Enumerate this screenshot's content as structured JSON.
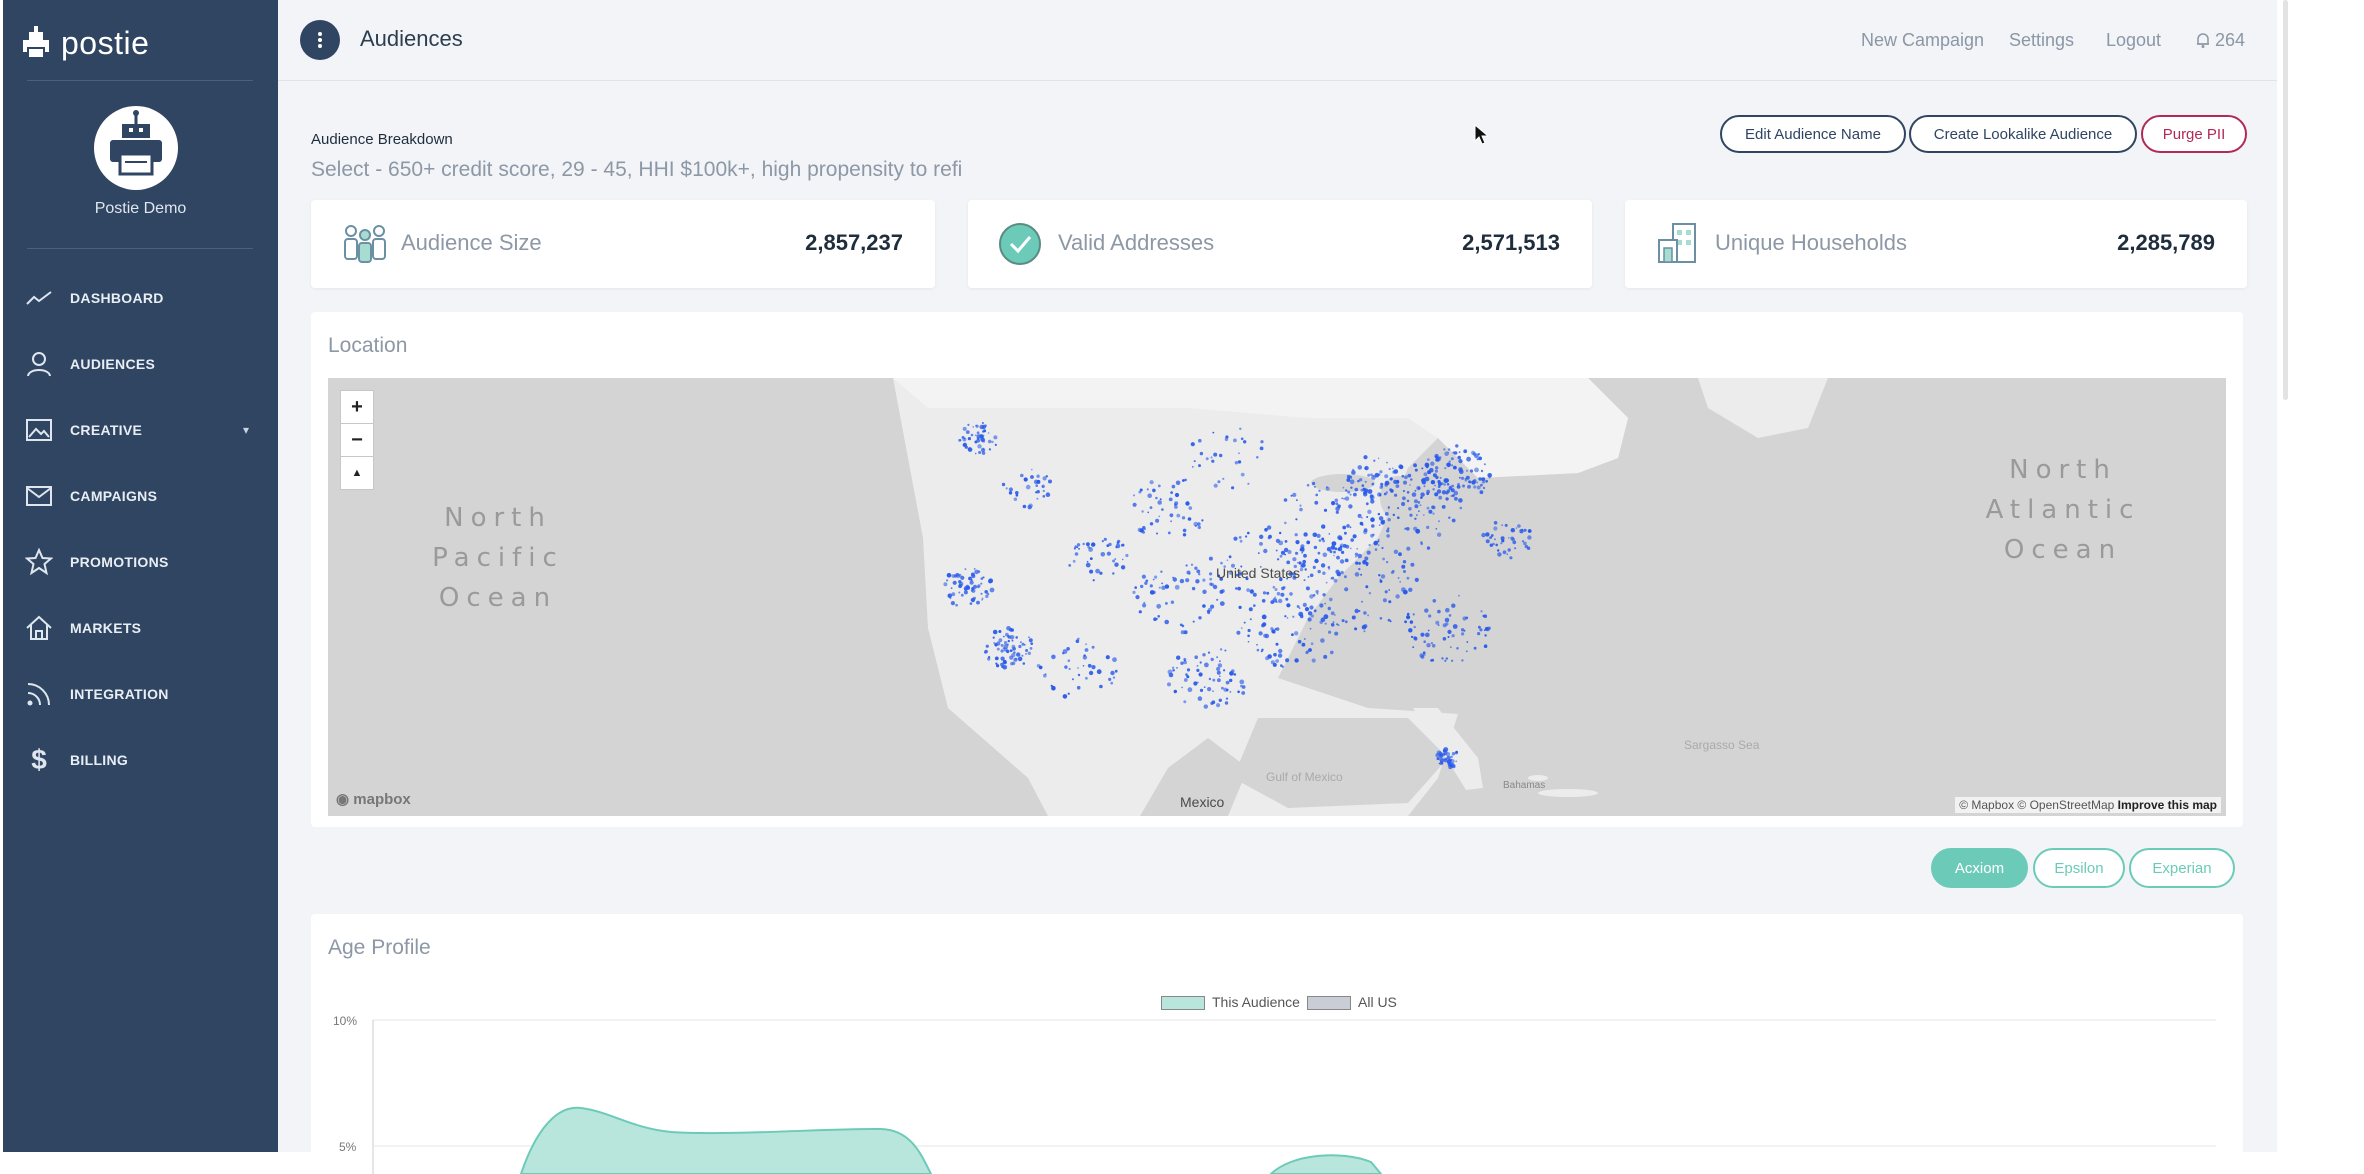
{
  "sidebar": {
    "brand": "postie",
    "profile_name": "Postie Demo",
    "items": [
      {
        "label": "DASHBOARD",
        "icon": "trend-line-icon"
      },
      {
        "label": "AUDIENCES",
        "icon": "user-icon"
      },
      {
        "label": "CREATIVE",
        "icon": "image-icon"
      },
      {
        "label": "CAMPAIGNS",
        "icon": "mail-icon"
      },
      {
        "label": "PROMOTIONS",
        "icon": "star-icon"
      },
      {
        "label": "MARKETS",
        "icon": "home-icon"
      },
      {
        "label": "INTEGRATION",
        "icon": "rss-icon"
      },
      {
        "label": "BILLING",
        "icon": "dollar-icon"
      }
    ]
  },
  "header": {
    "title": "Audiences",
    "new_campaign": "New Campaign",
    "settings": "Settings",
    "logout": "Logout",
    "notifications": "264"
  },
  "breakdown": {
    "title": "Audience Breakdown",
    "description": "Select - 650+ credit score, 29 - 45, HHI $100k+, high propensity to refi",
    "edit_name": "Edit Audience Name",
    "lookalike": "Create Lookalike Audience",
    "purge": "Purge PII"
  },
  "stats": {
    "audience_size_label": "Audience Size",
    "audience_size_value": "2,857,237",
    "valid_addresses_label": "Valid Addresses",
    "valid_addresses_value": "2,571,513",
    "unique_households_label": "Unique Households",
    "unique_households_value": "2,285,789"
  },
  "location": {
    "title": "Location",
    "zoom_in": "+",
    "zoom_out": "−",
    "compass": "▲",
    "pacific": "North Pacific Ocean",
    "atlantic": "North Atlantic Ocean",
    "united_states": "United States",
    "mexico": "Mexico",
    "gulf": "Gulf of Mexico",
    "sargasso": "Sargasso Sea",
    "bahamas": "Bahamas",
    "mapbox_logo": "mapbox",
    "attribution": "© Mapbox © OpenStreetMap",
    "improve": "Improve this map"
  },
  "data_sources": {
    "acxiom": "Acxiom",
    "epsilon": "Epsilon",
    "experian": "Experian",
    "active": "Acxiom"
  },
  "age_profile": {
    "title": "Age Profile",
    "legend_audience": "This Audience",
    "legend_all": "All US",
    "y_top": "10%",
    "y_mid": "5%"
  },
  "colors": {
    "sidebar": "#2f4562",
    "accent_teal": "#6ccbb8",
    "danger": "#b02a55",
    "map_dots": "#2a5bea"
  }
}
